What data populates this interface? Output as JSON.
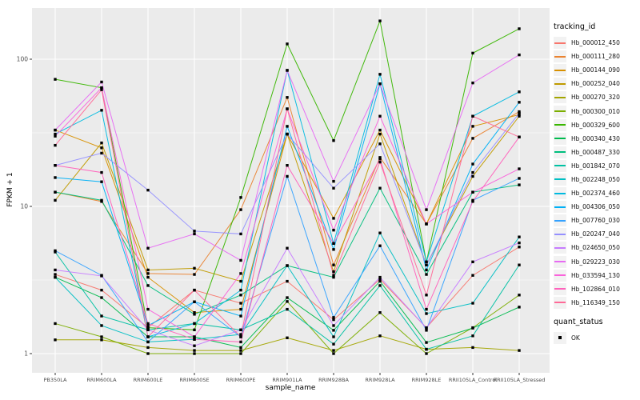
{
  "style": {
    "panel_bg": "#EBEBEB",
    "grid_color": "#FFFFFF",
    "axis_text_color": "#4D4D4D",
    "tick_color": "#333333",
    "legend_key_bg": "#F2F2F2",
    "point_color": "#000000"
  },
  "legend": {
    "tracking_title": "tracking_id",
    "quant_title": "quant_status",
    "quant_ok_label": "OK"
  },
  "chart_data": {
    "type": "line",
    "title": "",
    "xlabel": "sample_name",
    "ylabel": "FPKM + 1",
    "y_scale": "log10",
    "y_ticks": [
      1,
      10,
      100
    ],
    "y_minor_ticks": [
      3.162,
      31.62
    ],
    "ylim": [
      1,
      224
    ],
    "grid": true,
    "legend_position": "right",
    "point_shape": "square",
    "x_categories": [
      "PB350LA",
      "RRIM600LA",
      "RRIM600LE",
      "RRIM600SE",
      "RRIM600PE",
      "RRIM901LA",
      "RRIM928BA",
      "RRIM928LA",
      "RRIM928LE",
      "RRII105LA_Control",
      "RRII105LA_Stressed"
    ],
    "series": [
      {
        "name": "Hb_000012_450",
        "color": "#F8766D",
        "values": [
          3.45,
          2.7,
          1.5,
          2.7,
          2.2,
          3.1,
          1.7,
          3.2,
          1.5,
          3.4,
          5.3
        ]
      },
      {
        "name": "Hb_000111_280",
        "color": "#EA8331",
        "values": [
          12.5,
          10.8,
          3.5,
          3.45,
          9.5,
          55,
          4.0,
          21.5,
          7.6,
          29,
          44
        ]
      },
      {
        "name": "Hb_000144_090",
        "color": "#D89000",
        "values": [
          33,
          25,
          3.3,
          1.9,
          2.0,
          31,
          8.3,
          33,
          7.6,
          35,
          42
        ]
      },
      {
        "name": "Hb_000252_040",
        "color": "#C09B00",
        "values": [
          11,
          27,
          3.7,
          3.8,
          3.1,
          31,
          3.6,
          31,
          4.0,
          16,
          41
        ]
      },
      {
        "name": "Hb_000270_320",
        "color": "#A3A500",
        "values": [
          1.24,
          1.24,
          1.1,
          1.05,
          1.05,
          1.28,
          1.05,
          1.32,
          1.07,
          1.1,
          1.05
        ]
      },
      {
        "name": "Hb_000300_010",
        "color": "#7CAE00",
        "values": [
          1.6,
          1.3,
          1.0,
          1.0,
          1.0,
          2.26,
          1.0,
          1.9,
          1.0,
          1.5,
          2.5
        ]
      },
      {
        "name": "Hb_000329_600",
        "color": "#39B600",
        "values": [
          73,
          64,
          1.5,
          1.45,
          11.5,
          127,
          28,
          182,
          4.2,
          110,
          161
        ]
      },
      {
        "name": "Hb_000340_430",
        "color": "#00BB4E",
        "values": [
          3.3,
          2.4,
          1.3,
          1.3,
          1.1,
          2.4,
          1.44,
          3.1,
          1.19,
          1.49,
          2.07
        ]
      },
      {
        "name": "Hb_000487_330",
        "color": "#00BF7D",
        "values": [
          12.5,
          11,
          2.9,
          1.85,
          2.5,
          3.96,
          3.3,
          13.3,
          3.45,
          12.5,
          14
        ]
      },
      {
        "name": "Hb_001842_070",
        "color": "#00C1A3",
        "values": [
          4.9,
          1.8,
          1.45,
          1.6,
          1.45,
          2.0,
          1.16,
          2.9,
          1.07,
          1.32,
          4.0
        ]
      },
      {
        "name": "Hb_002248_050",
        "color": "#00BFC4",
        "values": [
          3.3,
          1.55,
          1.2,
          1.25,
          1.35,
          3.96,
          1.3,
          6.6,
          1.87,
          2.2,
          6.2
        ]
      },
      {
        "name": "Hb_002374_460",
        "color": "#00BAE0",
        "values": [
          31,
          45,
          1.3,
          1.6,
          2.7,
          84,
          5.6,
          79,
          4.2,
          41,
          60
        ]
      },
      {
        "name": "Hb_004306_050",
        "color": "#00B0F6",
        "values": [
          15.7,
          14.7,
          1.55,
          2.25,
          1.8,
          35,
          5.1,
          68,
          3.7,
          19.4,
          51
        ]
      },
      {
        "name": "Hb_007760_030",
        "color": "#35A2FF",
        "values": [
          5.0,
          3.4,
          1.2,
          2.25,
          1.3,
          16,
          1.76,
          5.4,
          1.44,
          11,
          15.5
        ]
      },
      {
        "name": "Hb_020247_040",
        "color": "#9590FF",
        "values": [
          19,
          23,
          12.9,
          6.8,
          6.5,
          31,
          13.3,
          26.6,
          4.0,
          17,
          43
        ]
      },
      {
        "name": "Hb_024650_050",
        "color": "#C77CFF",
        "values": [
          3.7,
          3.37,
          1.45,
          1.13,
          1.45,
          5.2,
          1.55,
          3.3,
          1.49,
          4.2,
          5.65
        ]
      },
      {
        "name": "Hb_029223_030",
        "color": "#E76BF3",
        "values": [
          33,
          70,
          5.2,
          6.5,
          4.3,
          84,
          14.8,
          68,
          9.5,
          69,
          107
        ]
      },
      {
        "name": "Hb_033594_130",
        "color": "#FA62DB",
        "values": [
          30,
          64,
          2.0,
          1.3,
          3.5,
          46,
          6.9,
          41,
          7.6,
          12.5,
          18
        ]
      },
      {
        "name": "Hb_102864_010",
        "color": "#FF62BC",
        "values": [
          19,
          17,
          1.6,
          1.25,
          1.2,
          19,
          5.6,
          21,
          2.0,
          10.8,
          29.6
        ]
      },
      {
        "name": "Hb_116349_150",
        "color": "#FF6A98",
        "values": [
          26,
          62,
          1.3,
          2.7,
          1.3,
          46,
          3.4,
          20,
          2.5,
          41,
          29.6
        ]
      }
    ]
  }
}
